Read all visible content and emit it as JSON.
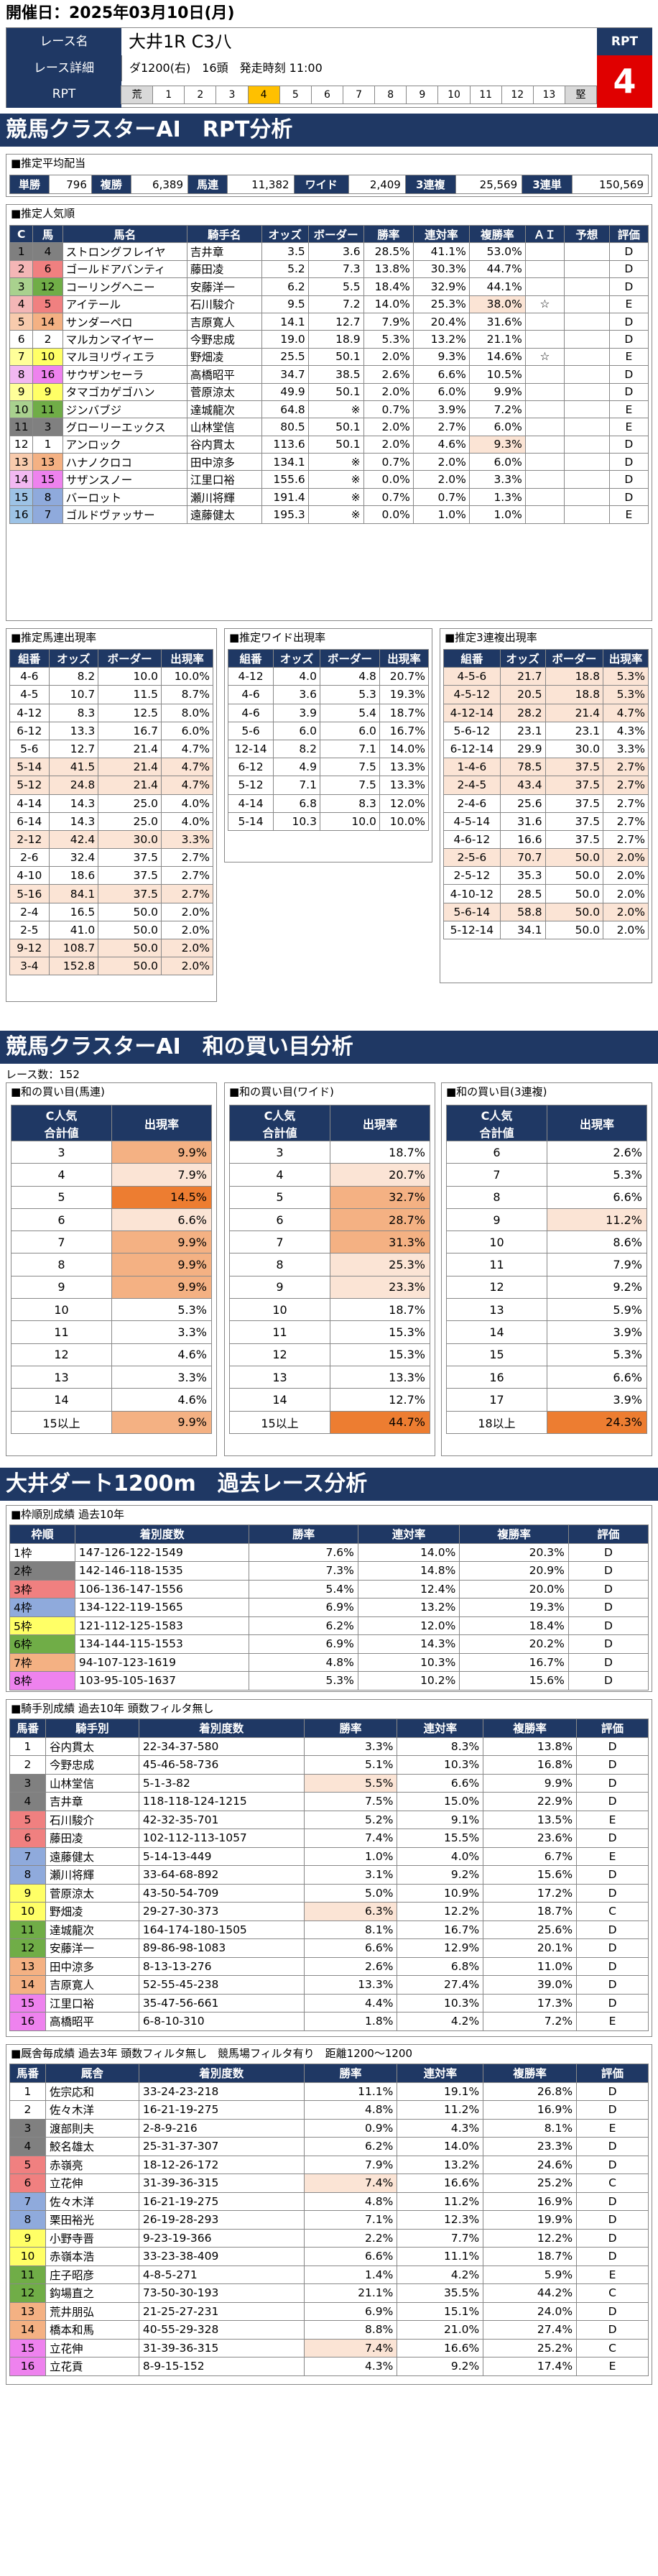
{
  "header": {
    "date_label": "開催日：2025年03月10日(月)",
    "race_name_label": "レース名",
    "race_name": "大井1R C3八",
    "detail_label": "レース詳細",
    "detail": "ダ1200(右)　16頭　発走時刻 11:00",
    "rpt_label": "RPT",
    "rpt_head": "RPT",
    "rpt_value": "4",
    "rpt_scale": [
      "荒",
      "1",
      "2",
      "3",
      "4",
      "5",
      "6",
      "7",
      "8",
      "9",
      "10",
      "11",
      "12",
      "13",
      "堅"
    ],
    "rpt_active": "4"
  },
  "colors": {
    "navy": "#1f3864",
    "orange": "#f4b183",
    "orange_dark": "#ed7d31",
    "peach": "#fbe4d5",
    "highlight": "#f9c99c"
  },
  "s1": {
    "title": "競馬クラスターAI　RPT分析",
    "avg_payout_title": "■推定平均配当",
    "payouts": [
      {
        "k": "単勝",
        "v": "796"
      },
      {
        "k": "複勝",
        "v": "6,389"
      },
      {
        "k": "馬連",
        "v": "11,382"
      },
      {
        "k": "ワイド",
        "v": "2,409"
      },
      {
        "k": "3連複",
        "v": "25,569"
      },
      {
        "k": "3連単",
        "v": "150,569"
      }
    ],
    "popularity_title": "■推定人気順",
    "popularity_headers": [
      "C",
      "馬",
      "馬名",
      "騎手名",
      "オッズ",
      "ボーダー",
      "勝率",
      "連対率",
      "複勝率",
      "ＡＩ",
      "予想",
      "評価"
    ],
    "popularity_rows": [
      [
        "1",
        "4",
        "ストロングフレイヤ",
        "吉井章",
        "3.5",
        "3.6",
        "28.5%",
        "41.1%",
        "53.0%",
        "",
        "",
        "D"
      ],
      [
        "2",
        "6",
        "ゴールドアバンティ",
        "藤田凌",
        "5.2",
        "7.3",
        "13.8%",
        "30.3%",
        "44.7%",
        "",
        "",
        "D"
      ],
      [
        "3",
        "12",
        "コーリングヘニー",
        "安藤洋一",
        "6.2",
        "5.5",
        "18.4%",
        "32.9%",
        "44.1%",
        "",
        "",
        "D"
      ],
      [
        "4",
        "5",
        "アイテール",
        "石川駿介",
        "9.5",
        "7.2",
        "14.0%",
        "25.3%",
        "38.0%",
        "☆",
        "",
        "E"
      ],
      [
        "5",
        "14",
        "サンダーペロ",
        "吉原寛人",
        "14.1",
        "12.7",
        "7.9%",
        "20.4%",
        "31.6%",
        "",
        "",
        "D"
      ],
      [
        "6",
        "2",
        "マルカンマイヤー",
        "今野忠成",
        "19.0",
        "18.9",
        "5.3%",
        "13.2%",
        "21.1%",
        "",
        "",
        "D"
      ],
      [
        "7",
        "10",
        "マルヨリヴィエラ",
        "野畑凌",
        "25.5",
        "50.1",
        "2.0%",
        "9.3%",
        "14.6%",
        "☆",
        "",
        "E"
      ],
      [
        "8",
        "16",
        "サウザンセーラ",
        "高橋昭平",
        "34.7",
        "38.5",
        "2.6%",
        "6.6%",
        "10.5%",
        "",
        "",
        "D"
      ],
      [
        "9",
        "9",
        "タマゴカゲゴハン",
        "菅原涼太",
        "49.9",
        "50.1",
        "2.0%",
        "6.0%",
        "9.9%",
        "",
        "",
        "D"
      ],
      [
        "10",
        "11",
        "ジンバブジ",
        "達城龍次",
        "64.8",
        "※",
        "0.7%",
        "3.9%",
        "7.2%",
        "",
        "",
        "E"
      ],
      [
        "11",
        "3",
        "グローリーエックス",
        "山林堂信",
        "80.5",
        "50.1",
        "2.0%",
        "2.7%",
        "6.0%",
        "",
        "",
        "E"
      ],
      [
        "12",
        "1",
        "アンロック",
        "谷内貫太",
        "113.6",
        "50.1",
        "2.0%",
        "4.6%",
        "9.3%",
        "",
        "",
        "D"
      ],
      [
        "13",
        "13",
        "ハナノクロコ",
        "田中涼多",
        "134.1",
        "※",
        "0.7%",
        "2.0%",
        "6.0%",
        "",
        "",
        "D"
      ],
      [
        "14",
        "15",
        "サザンスノー",
        "江里口裕",
        "155.6",
        "※",
        "0.0%",
        "2.0%",
        "3.3%",
        "",
        "",
        "D"
      ],
      [
        "15",
        "8",
        "バーロット",
        "瀬川将輝",
        "191.4",
        "※",
        "0.7%",
        "0.7%",
        "1.3%",
        "",
        "",
        "D"
      ],
      [
        "16",
        "7",
        "ゴルドヴァッサー",
        "遠藤健太",
        "195.3",
        "※",
        "0.0%",
        "1.0%",
        "1.0%",
        "",
        "",
        "E"
      ]
    ],
    "umaren_title": "■推定馬連出現率",
    "wide_title": "■推定ワイド出現率",
    "sanren_title": "■推定3連複出現率",
    "mini_headers": [
      "組番",
      "オッズ",
      "ボーダー",
      "出現率"
    ],
    "umaren": [
      [
        "4-6",
        "8.2",
        "10.0",
        "10.0%"
      ],
      [
        "4-5",
        "10.7",
        "11.5",
        "8.7%"
      ],
      [
        "4-12",
        "8.3",
        "12.5",
        "8.0%"
      ],
      [
        "6-12",
        "13.3",
        "16.7",
        "6.0%"
      ],
      [
        "5-6",
        "12.7",
        "21.4",
        "4.7%"
      ],
      [
        "5-14",
        "41.5",
        "21.4",
        "4.7%"
      ],
      [
        "5-12",
        "24.8",
        "21.4",
        "4.7%"
      ],
      [
        "4-14",
        "14.3",
        "25.0",
        "4.0%"
      ],
      [
        "6-14",
        "14.3",
        "25.0",
        "4.0%"
      ],
      [
        "2-12",
        "42.4",
        "30.0",
        "3.3%"
      ],
      [
        "2-6",
        "32.4",
        "37.5",
        "2.7%"
      ],
      [
        "4-10",
        "18.6",
        "37.5",
        "2.7%"
      ],
      [
        "5-16",
        "84.1",
        "37.5",
        "2.7%"
      ],
      [
        "2-4",
        "16.5",
        "50.0",
        "2.0%"
      ],
      [
        "2-5",
        "41.0",
        "50.0",
        "2.0%"
      ],
      [
        "9-12",
        "108.7",
        "50.0",
        "2.0%"
      ],
      [
        "3-4",
        "152.8",
        "50.0",
        "2.0%"
      ]
    ],
    "wide": [
      [
        "4-12",
        "4.0",
        "4.8",
        "20.7%"
      ],
      [
        "4-6",
        "3.6",
        "5.3",
        "19.3%"
      ],
      [
        "4-6",
        "3.9",
        "5.4",
        "18.7%"
      ],
      [
        "5-6",
        "6.0",
        "6.0",
        "16.7%"
      ],
      [
        "12-14",
        "8.2",
        "7.1",
        "14.0%"
      ],
      [
        "6-12",
        "4.9",
        "7.5",
        "13.3%"
      ],
      [
        "5-12",
        "7.1",
        "7.5",
        "13.3%"
      ],
      [
        "4-14",
        "6.8",
        "8.3",
        "12.0%"
      ],
      [
        "5-14",
        "10.3",
        "10.0",
        "10.0%"
      ]
    ],
    "sanren": [
      [
        "4-5-6",
        "21.7",
        "18.8",
        "5.3%"
      ],
      [
        "4-5-12",
        "20.5",
        "18.8",
        "5.3%"
      ],
      [
        "4-12-14",
        "28.2",
        "21.4",
        "4.7%"
      ],
      [
        "5-6-12",
        "23.1",
        "23.1",
        "4.3%"
      ],
      [
        "6-12-14",
        "29.9",
        "30.0",
        "3.3%"
      ],
      [
        "1-4-6",
        "78.5",
        "37.5",
        "2.7%"
      ],
      [
        "2-4-5",
        "43.4",
        "37.5",
        "2.7%"
      ],
      [
        "2-4-6",
        "25.6",
        "37.5",
        "2.7%"
      ],
      [
        "4-5-14",
        "31.6",
        "37.5",
        "2.7%"
      ],
      [
        "4-6-12",
        "16.6",
        "37.5",
        "2.7%"
      ],
      [
        "2-5-6",
        "70.7",
        "50.0",
        "2.0%"
      ],
      [
        "2-5-12",
        "35.3",
        "50.0",
        "2.0%"
      ],
      [
        "4-10-12",
        "28.5",
        "50.0",
        "2.0%"
      ],
      [
        "5-6-14",
        "58.8",
        "50.0",
        "2.0%"
      ],
      [
        "5-12-14",
        "34.1",
        "50.0",
        "2.0%"
      ]
    ]
  },
  "s2": {
    "title": "競馬クラスターAI　和の買い目分析",
    "race_count": "レース数：152",
    "t1_title": "■和の買い目(馬連)",
    "t2_title": "■和の買い目(ワイド)",
    "t3_title": "■和の買い目(3連複)",
    "hdr_a": "C人気",
    "hdr_b": "合計値",
    "hdr_c": "出現率",
    "umaren": [
      [
        "3",
        "9.9%"
      ],
      [
        "4",
        "7.9%"
      ],
      [
        "5",
        "14.5%"
      ],
      [
        "6",
        "6.6%"
      ],
      [
        "7",
        "9.9%"
      ],
      [
        "8",
        "9.9%"
      ],
      [
        "9",
        "9.9%"
      ],
      [
        "10",
        "5.3%"
      ],
      [
        "11",
        "3.3%"
      ],
      [
        "12",
        "4.6%"
      ],
      [
        "13",
        "3.3%"
      ],
      [
        "14",
        "4.6%"
      ],
      [
        "15以上",
        "9.9%"
      ]
    ],
    "wide": [
      [
        "3",
        "18.7%"
      ],
      [
        "4",
        "20.7%"
      ],
      [
        "5",
        "32.7%"
      ],
      [
        "6",
        "28.7%"
      ],
      [
        "7",
        "31.3%"
      ],
      [
        "8",
        "25.3%"
      ],
      [
        "9",
        "23.3%"
      ],
      [
        "10",
        "18.7%"
      ],
      [
        "11",
        "15.3%"
      ],
      [
        "12",
        "15.3%"
      ],
      [
        "13",
        "13.3%"
      ],
      [
        "14",
        "12.7%"
      ],
      [
        "15以上",
        "44.7%"
      ]
    ],
    "sanren": [
      [
        "6",
        "2.6%"
      ],
      [
        "7",
        "5.3%"
      ],
      [
        "8",
        "6.6%"
      ],
      [
        "9",
        "11.2%"
      ],
      [
        "10",
        "8.6%"
      ],
      [
        "11",
        "7.9%"
      ],
      [
        "12",
        "9.2%"
      ],
      [
        "13",
        "5.9%"
      ],
      [
        "14",
        "3.9%"
      ],
      [
        "15",
        "5.3%"
      ],
      [
        "16",
        "6.6%"
      ],
      [
        "17",
        "3.9%"
      ],
      [
        "18以上",
        "24.3%"
      ]
    ]
  },
  "s3": {
    "title": "大井ダート1200m　過去レース分析",
    "waku_title": "■枠順別成績 過去10年",
    "waku_headers": [
      "枠順",
      "着別度数",
      "勝率",
      "連対率",
      "複勝率",
      "評価"
    ],
    "waku": [
      [
        "1枠",
        "147-126-122-1549",
        "7.6%",
        "14.0%",
        "20.3%",
        "D"
      ],
      [
        "2枠",
        "142-146-118-1535",
        "7.3%",
        "14.8%",
        "20.9%",
        "D"
      ],
      [
        "3枠",
        "106-136-147-1556",
        "5.4%",
        "12.4%",
        "20.0%",
        "D"
      ],
      [
        "4枠",
        "134-122-119-1565",
        "6.9%",
        "13.2%",
        "19.3%",
        "D"
      ],
      [
        "5枠",
        "121-112-125-1583",
        "6.2%",
        "12.0%",
        "18.4%",
        "D"
      ],
      [
        "6枠",
        "134-144-115-1553",
        "6.9%",
        "14.3%",
        "20.2%",
        "D"
      ],
      [
        "7枠",
        "94-107-123-1619",
        "4.8%",
        "10.3%",
        "16.7%",
        "D"
      ],
      [
        "8枠",
        "103-95-105-1637",
        "5.3%",
        "10.2%",
        "15.6%",
        "D"
      ]
    ],
    "jockey_title": "■騎手別成績 過去10年 頭数フィルタ無し",
    "jockey_headers": [
      "馬番",
      "騎手別",
      "着別度数",
      "勝率",
      "連対率",
      "複勝率",
      "評価"
    ],
    "jockey": [
      [
        "1",
        "谷内貫太",
        "22-34-37-580",
        "3.3%",
        "8.3%",
        "13.8%",
        "D"
      ],
      [
        "2",
        "今野忠成",
        "45-46-58-736",
        "5.1%",
        "10.3%",
        "16.8%",
        "D"
      ],
      [
        "3",
        "山林堂信",
        "5-1-3-82",
        "5.5%",
        "6.6%",
        "9.9%",
        "D"
      ],
      [
        "4",
        "吉井章",
        "118-118-124-1215",
        "7.5%",
        "15.0%",
        "22.9%",
        "D"
      ],
      [
        "5",
        "石川駿介",
        "42-32-35-701",
        "5.2%",
        "9.1%",
        "13.5%",
        "E"
      ],
      [
        "6",
        "藤田凌",
        "102-112-113-1057",
        "7.4%",
        "15.5%",
        "23.6%",
        "D"
      ],
      [
        "7",
        "遠藤健太",
        "5-14-13-449",
        "1.0%",
        "4.0%",
        "6.7%",
        "E"
      ],
      [
        "8",
        "瀬川将輝",
        "33-64-68-892",
        "3.1%",
        "9.2%",
        "15.6%",
        "D"
      ],
      [
        "9",
        "菅原涼太",
        "43-50-54-709",
        "5.0%",
        "10.9%",
        "17.2%",
        "D"
      ],
      [
        "10",
        "野畑凌",
        "29-27-30-373",
        "6.3%",
        "12.2%",
        "18.7%",
        "C"
      ],
      [
        "11",
        "達城龍次",
        "164-174-180-1505",
        "8.1%",
        "16.7%",
        "25.6%",
        "D"
      ],
      [
        "12",
        "安藤洋一",
        "89-86-98-1083",
        "6.6%",
        "12.9%",
        "20.1%",
        "D"
      ],
      [
        "13",
        "田中涼多",
        "8-13-13-276",
        "2.6%",
        "6.8%",
        "11.0%",
        "D"
      ],
      [
        "14",
        "吉原寛人",
        "52-55-45-238",
        "13.3%",
        "27.4%",
        "39.0%",
        "D"
      ],
      [
        "15",
        "江里口裕",
        "35-47-56-661",
        "4.4%",
        "10.3%",
        "17.3%",
        "D"
      ],
      [
        "16",
        "高橋昭平",
        "6-8-10-310",
        "1.8%",
        "4.2%",
        "7.2%",
        "E"
      ]
    ],
    "trainer_title": "■厩舎毎成績 過去3年 頭数フィルタ無し　競馬場フィルタ有り　距離1200〜1200",
    "trainer_headers": [
      "馬番",
      "厩舎",
      "着別度数",
      "勝率",
      "連対率",
      "複勝率",
      "評価"
    ],
    "trainer": [
      [
        "1",
        "佐宗応和",
        "33-24-23-218",
        "11.1%",
        "19.1%",
        "26.8%",
        "D"
      ],
      [
        "2",
        "佐々木洋",
        "16-21-19-275",
        "4.8%",
        "11.2%",
        "16.9%",
        "D"
      ],
      [
        "3",
        "渡部則夫",
        "2-8-9-216",
        "0.9%",
        "4.3%",
        "8.1%",
        "E"
      ],
      [
        "4",
        "鮫名雄太",
        "25-31-37-307",
        "6.2%",
        "14.0%",
        "23.3%",
        "D"
      ],
      [
        "5",
        "赤嶺亮",
        "18-12-26-172",
        "7.9%",
        "13.2%",
        "24.6%",
        "D"
      ],
      [
        "6",
        "立花伸",
        "31-39-36-315",
        "7.4%",
        "16.6%",
        "25.2%",
        "C"
      ],
      [
        "7",
        "佐々木洋",
        "16-21-19-275",
        "4.8%",
        "11.2%",
        "16.9%",
        "D"
      ],
      [
        "8",
        "栗田裕光",
        "26-19-28-293",
        "7.1%",
        "12.3%",
        "19.9%",
        "D"
      ],
      [
        "9",
        "小野寺晋",
        "9-23-19-366",
        "2.2%",
        "7.7%",
        "12.2%",
        "D"
      ],
      [
        "10",
        "赤嶺本浩",
        "33-23-38-409",
        "6.6%",
        "11.1%",
        "18.7%",
        "D"
      ],
      [
        "11",
        "庄子昭彦",
        "4-8-5-271",
        "1.4%",
        "4.2%",
        "5.9%",
        "E"
      ],
      [
        "12",
        "鈎場直之",
        "73-50-30-193",
        "21.1%",
        "35.5%",
        "44.2%",
        "C"
      ],
      [
        "13",
        "荒井朋弘",
        "21-25-27-231",
        "6.9%",
        "15.1%",
        "24.0%",
        "D"
      ],
      [
        "14",
        "橋本和馬",
        "40-55-29-328",
        "8.8%",
        "21.0%",
        "27.4%",
        "D"
      ],
      [
        "15",
        "立花伸",
        "31-39-36-315",
        "7.4%",
        "16.6%",
        "25.2%",
        "C"
      ],
      [
        "16",
        "立花貢",
        "8-9-15-152",
        "4.3%",
        "9.2%",
        "17.4%",
        "E"
      ]
    ]
  }
}
